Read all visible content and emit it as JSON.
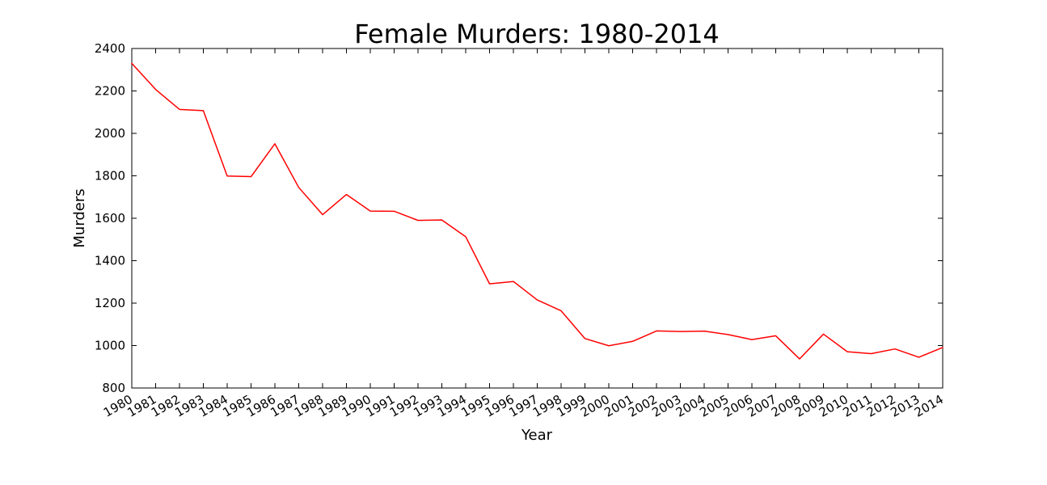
{
  "chart_data": {
    "type": "line",
    "title": "Female Murders: 1980-2014",
    "xlabel": "Year",
    "ylabel": "Murders",
    "ylim": [
      800,
      2400
    ],
    "yticks": [
      800,
      1000,
      1200,
      1400,
      1600,
      1800,
      2000,
      2200,
      2400
    ],
    "x": [
      1980,
      1981,
      1982,
      1983,
      1984,
      1985,
      1986,
      1987,
      1988,
      1989,
      1990,
      1991,
      1992,
      1993,
      1994,
      1995,
      1996,
      1997,
      1998,
      1999,
      2000,
      2001,
      2002,
      2003,
      2004,
      2005,
      2006,
      2007,
      2008,
      2009,
      2010,
      2011,
      2012,
      2013,
      2014
    ],
    "series": [
      {
        "color": "#ff0000",
        "values": [
          2330,
          2207,
          2113,
          2107,
          1799,
          1796,
          1951,
          1745,
          1617,
          1712,
          1634,
          1633,
          1590,
          1592,
          1513,
          1291,
          1302,
          1215,
          1164,
          1033,
          999,
          1020,
          1069,
          1066,
          1068,
          1052,
          1028,
          1046,
          937,
          1054,
          971,
          962,
          984,
          945,
          991
        ]
      }
    ],
    "grid": false,
    "legend": false
  }
}
